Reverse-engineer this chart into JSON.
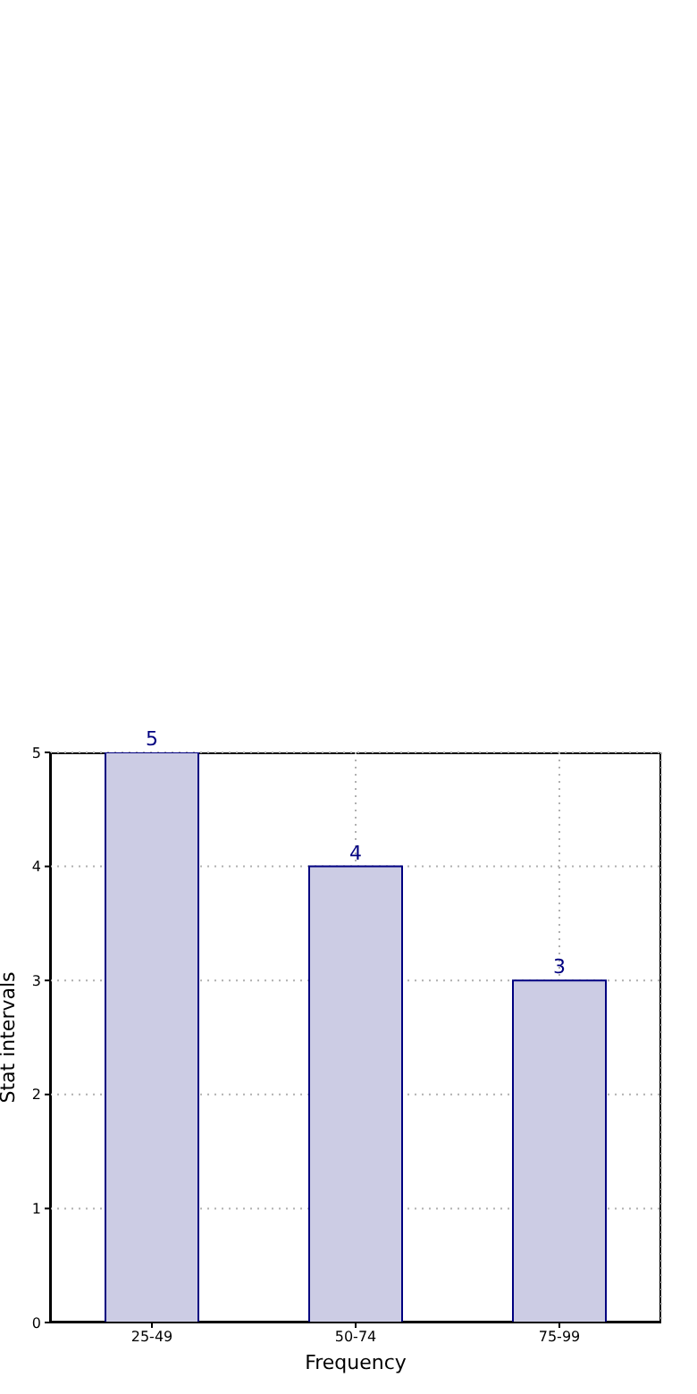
{
  "chart_data": {
    "type": "bar",
    "xlabel": "Frequency",
    "ylabel": "Stat intervals",
    "categories": [
      "25-49",
      "50-74",
      "75-99"
    ],
    "series": [
      {
        "color": "#ccccE4",
        "values": [
          5,
          4,
          3
        ]
      }
    ],
    "ylim": [
      0,
      5
    ],
    "yticks": [
      0,
      1,
      2,
      3,
      4,
      5
    ],
    "grid": true,
    "data_labels": true
  }
}
